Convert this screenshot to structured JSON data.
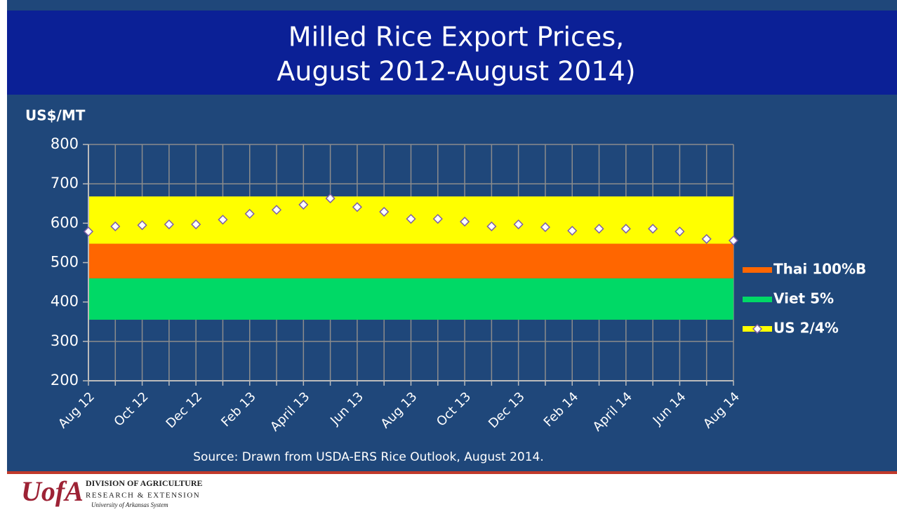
{
  "chart_data": {
    "type": "band-scatter",
    "title": "Milled Rice Export Prices,",
    "subtitle": "August 2012-August 2014)",
    "y_label": "US$/MT",
    "source": "Source: Drawn from USDA-ERS Rice Outlook, August 2014.",
    "categories": [
      "Aug 12",
      null,
      "Oct 12",
      null,
      "Dec 12",
      null,
      "Feb 13",
      null,
      "April 13",
      null,
      "Jun 13",
      null,
      "Aug 13",
      null,
      "Oct 13",
      null,
      "Dec 13",
      null,
      "Feb 14",
      null,
      "April 14",
      null,
      "Jun 14",
      null,
      "Aug 14"
    ],
    "ylim": [
      200,
      800
    ],
    "yticks": [
      200,
      300,
      400,
      500,
      600,
      700,
      800
    ],
    "grid": true,
    "series": [
      {
        "name": "Thai 100%B",
        "color": "#ff6600",
        "band": [
          460,
          548
        ]
      },
      {
        "name": "Viet 5%",
        "color": "#00d966",
        "band": [
          355,
          460
        ]
      },
      {
        "name": "US 2/4%",
        "color": "#ffff00",
        "band": [
          548,
          668
        ],
        "values": [
          579,
          592,
          595,
          597,
          597,
          609,
          624,
          634,
          647,
          663,
          641,
          629,
          611,
          611,
          604,
          592,
          597,
          590,
          581,
          586,
          586,
          586,
          579,
          560,
          556
        ]
      }
    ]
  },
  "footer": {
    "logo": "UofA",
    "line1": "DIVISION OF AGRICULTURE",
    "line2": "RESEARCH & EXTENSION",
    "line3": "University of Arkansas System"
  }
}
